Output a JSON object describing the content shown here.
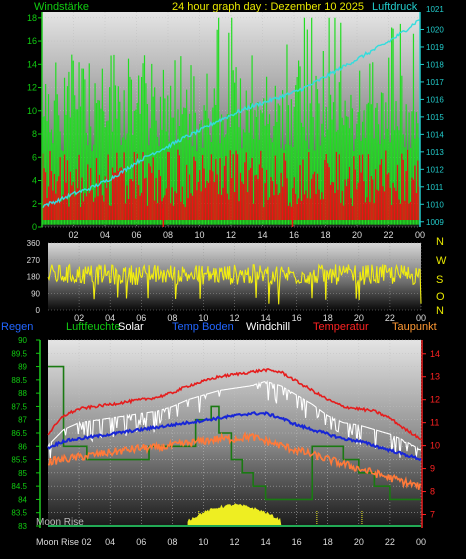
{
  "header": {
    "left_label": "Windstärke",
    "title": "24 hour graph day : Dezember 10 2025",
    "right_label": "Luftdruck"
  },
  "colors": {
    "wind_gust": "#22dd22",
    "wind_avg": "#ee1111",
    "pressure": "#33dddd",
    "wind_dir": "#f2ee10",
    "temperature": "#e51d1d",
    "temp_ground": "#1826d6",
    "windchill": "#ffffff",
    "dewpoint": "#ff7a3a",
    "humidity": "#1a7a12",
    "solar": "#eeee22",
    "regen": "#2266ff",
    "text_green": "#11cc11",
    "text_cyan": "#22cccc",
    "text_yellow": "#e8e800",
    "text_red": "#ff2222",
    "text_orange": "#ff9933"
  },
  "legend": {
    "regen": "Regen",
    "luftfeuchte": "Luftfeuchte",
    "solar": "Solar",
    "temp_boden": "Temp Boden",
    "windchill": "Windchill",
    "temperatur": "Temperatur",
    "taupunkt": "Taupunkt"
  },
  "moon": {
    "rise_label": "Moon Rise",
    "rise_bottom_label": "Moon Rise 02"
  },
  "chart_data": [
    {
      "id": "wind_pressure",
      "type": "bar",
      "title": "24 hour graph day : Dezember 10 2025",
      "x_ticks": [
        "02",
        "04",
        "06",
        "08",
        "10",
        "12",
        "14",
        "16",
        "18",
        "20",
        "22",
        "00"
      ],
      "xlim": [
        0,
        24
      ],
      "left_axis": {
        "label": "Windstärke",
        "ticks": [
          0,
          2,
          4,
          6,
          8,
          10,
          12,
          14,
          16,
          18
        ],
        "range": [
          0,
          18.5
        ]
      },
      "right_axis": {
        "label": "Luftdruck",
        "ticks": [
          1009,
          1010,
          1011,
          1012,
          1013,
          1014,
          1015,
          1016,
          1017,
          1018,
          1019,
          1020
        ],
        "top_tick_partial": "1021",
        "range": [
          1008.7,
          1021
        ]
      },
      "gust_band": {
        "typical_low": 6.5,
        "typical_high": 11.0,
        "spike_max": 18.0,
        "spikes_to_max_after_hour": 10.0
      },
      "avg_band": {
        "typical_low": 1.7,
        "typical_high": 5.5,
        "dips_to_zero_hours": [
          7.7,
          15.9
        ]
      },
      "pressure": {
        "x": [
          0,
          1,
          2,
          3,
          4,
          5,
          6,
          7,
          8,
          9,
          10,
          11,
          12,
          13,
          14,
          15,
          16,
          17,
          18,
          19,
          20,
          21,
          22,
          23,
          24
        ],
        "y": [
          1009.9,
          1010.2,
          1010.6,
          1010.9,
          1011.3,
          1011.8,
          1012.4,
          1012.9,
          1013.3,
          1013.8,
          1014.2,
          1014.7,
          1015.1,
          1015.5,
          1015.8,
          1016.1,
          1016.4,
          1016.8,
          1017.3,
          1017.8,
          1018.3,
          1018.8,
          1019.3,
          1019.9,
          1020.6
        ]
      },
      "grid": true
    },
    {
      "id": "wind_direction",
      "type": "line",
      "x_ticks": [
        "02",
        "04",
        "06",
        "08",
        "10",
        "12",
        "14",
        "16",
        "18",
        "20",
        "22",
        "00"
      ],
      "xlim": [
        0,
        24
      ],
      "y_ticks": [
        0,
        90,
        180,
        270,
        360
      ],
      "ylim": [
        0,
        360
      ],
      "right_labels": [
        "N",
        "W",
        "S",
        "O",
        "N"
      ],
      "direction_base_degrees": 190,
      "direction_spread_degrees": 55,
      "occasional_drops_to_degrees": 30,
      "grid": true
    },
    {
      "id": "temperature",
      "type": "line",
      "x_ticks": [
        "02",
        "04",
        "06",
        "08",
        "10",
        "12",
        "14",
        "16",
        "18",
        "20",
        "22",
        "00"
      ],
      "xlim": [
        0,
        24
      ],
      "left_axis": {
        "ticks": [
          83,
          83.5,
          84,
          84.5,
          85,
          85.5,
          86,
          86.5,
          87,
          87.5,
          88,
          88.5,
          89,
          89.5,
          90
        ],
        "range": [
          83,
          90
        ]
      },
      "right_axis": {
        "ticks": [
          7,
          8,
          9,
          10,
          11,
          12,
          13,
          14
        ],
        "range": [
          6.5,
          14.6
        ]
      },
      "series": [
        {
          "name": "Temperatur",
          "key": "temperature",
          "axis": "right",
          "x": [
            0,
            1,
            2,
            3,
            4,
            5,
            6,
            7,
            8,
            9,
            10,
            11,
            12,
            13,
            14,
            15,
            16,
            17,
            18,
            19,
            20,
            21,
            22,
            23,
            24
          ],
          "y": [
            10.5,
            11.3,
            11.6,
            11.7,
            11.8,
            11.9,
            12.0,
            12.1,
            12.3,
            12.6,
            12.8,
            13.0,
            13.1,
            13.2,
            13.3,
            13.2,
            12.8,
            12.4,
            12.0,
            11.7,
            11.6,
            11.5,
            11.2,
            10.7,
            10.3
          ]
        },
        {
          "name": "Windchill",
          "key": "windchill",
          "axis": "right",
          "x": [
            0,
            1,
            2,
            3,
            4,
            5,
            6,
            7,
            8,
            9,
            10,
            11,
            12,
            13,
            14,
            15,
            16,
            17,
            18,
            19,
            20,
            21,
            22,
            23,
            24
          ],
          "y": [
            10.0,
            10.7,
            11.0,
            11.1,
            11.2,
            11.3,
            11.4,
            11.5,
            11.7,
            12.0,
            12.2,
            12.4,
            12.5,
            12.6,
            12.8,
            12.6,
            12.2,
            11.8,
            11.3,
            11.0,
            10.9,
            10.7,
            10.5,
            10.2,
            9.8
          ]
        },
        {
          "name": "Temp Boden",
          "key": "temp_ground",
          "axis": "right",
          "x": [
            0,
            1,
            2,
            3,
            4,
            5,
            6,
            7,
            8,
            9,
            10,
            11,
            12,
            13,
            14,
            15,
            16,
            17,
            18,
            19,
            20,
            21,
            22,
            23,
            24
          ],
          "y": [
            9.9,
            10.2,
            10.3,
            10.4,
            10.5,
            10.6,
            10.7,
            10.8,
            10.9,
            11.0,
            11.1,
            11.2,
            11.3,
            11.4,
            11.4,
            11.2,
            10.9,
            10.7,
            10.5,
            10.3,
            10.2,
            10.0,
            9.8,
            9.6,
            9.4
          ]
        },
        {
          "name": "Taupunkt",
          "key": "dewpoint",
          "axis": "right",
          "x": [
            0,
            1,
            2,
            3,
            4,
            5,
            6,
            7,
            8,
            9,
            10,
            11,
            12,
            13,
            14,
            15,
            16,
            17,
            18,
            19,
            20,
            21,
            22,
            23,
            24
          ],
          "y": [
            9.3,
            9.4,
            9.5,
            9.6,
            9.7,
            9.8,
            9.9,
            9.9,
            10.0,
            10.1,
            10.2,
            10.3,
            10.3,
            10.4,
            10.2,
            10.0,
            9.8,
            9.6,
            9.4,
            9.2,
            9.0,
            8.8,
            8.6,
            8.4,
            8.2
          ]
        },
        {
          "name": "Luftfeuchte",
          "key": "humidity",
          "axis": "left",
          "step": true,
          "x": [
            0,
            0.8,
            1.0,
            2.5,
            4.0,
            6.0,
            6.5,
            8.0,
            9.0,
            9.5,
            10.5,
            11.0,
            11.8,
            12.5,
            13.2,
            14.0,
            15.0,
            16.0,
            17.0,
            18.0,
            19.0,
            20.0,
            21.0,
            22.0,
            24.0
          ],
          "y": [
            89.0,
            89.0,
            86.0,
            85.5,
            85.5,
            85.5,
            86.0,
            86.0,
            86.0,
            87.0,
            87.5,
            86.5,
            85.5,
            85.0,
            84.5,
            84.0,
            84.0,
            84.0,
            86.0,
            86.0,
            85.5,
            85.0,
            84.5,
            84.0,
            84.0
          ]
        }
      ],
      "solar": {
        "x": [
          9,
          10,
          11,
          12,
          13,
          14,
          15
        ],
        "y": [
          83.2,
          83.5,
          83.7,
          83.8,
          83.7,
          83.5,
          83.2
        ]
      },
      "grid": true
    }
  ]
}
